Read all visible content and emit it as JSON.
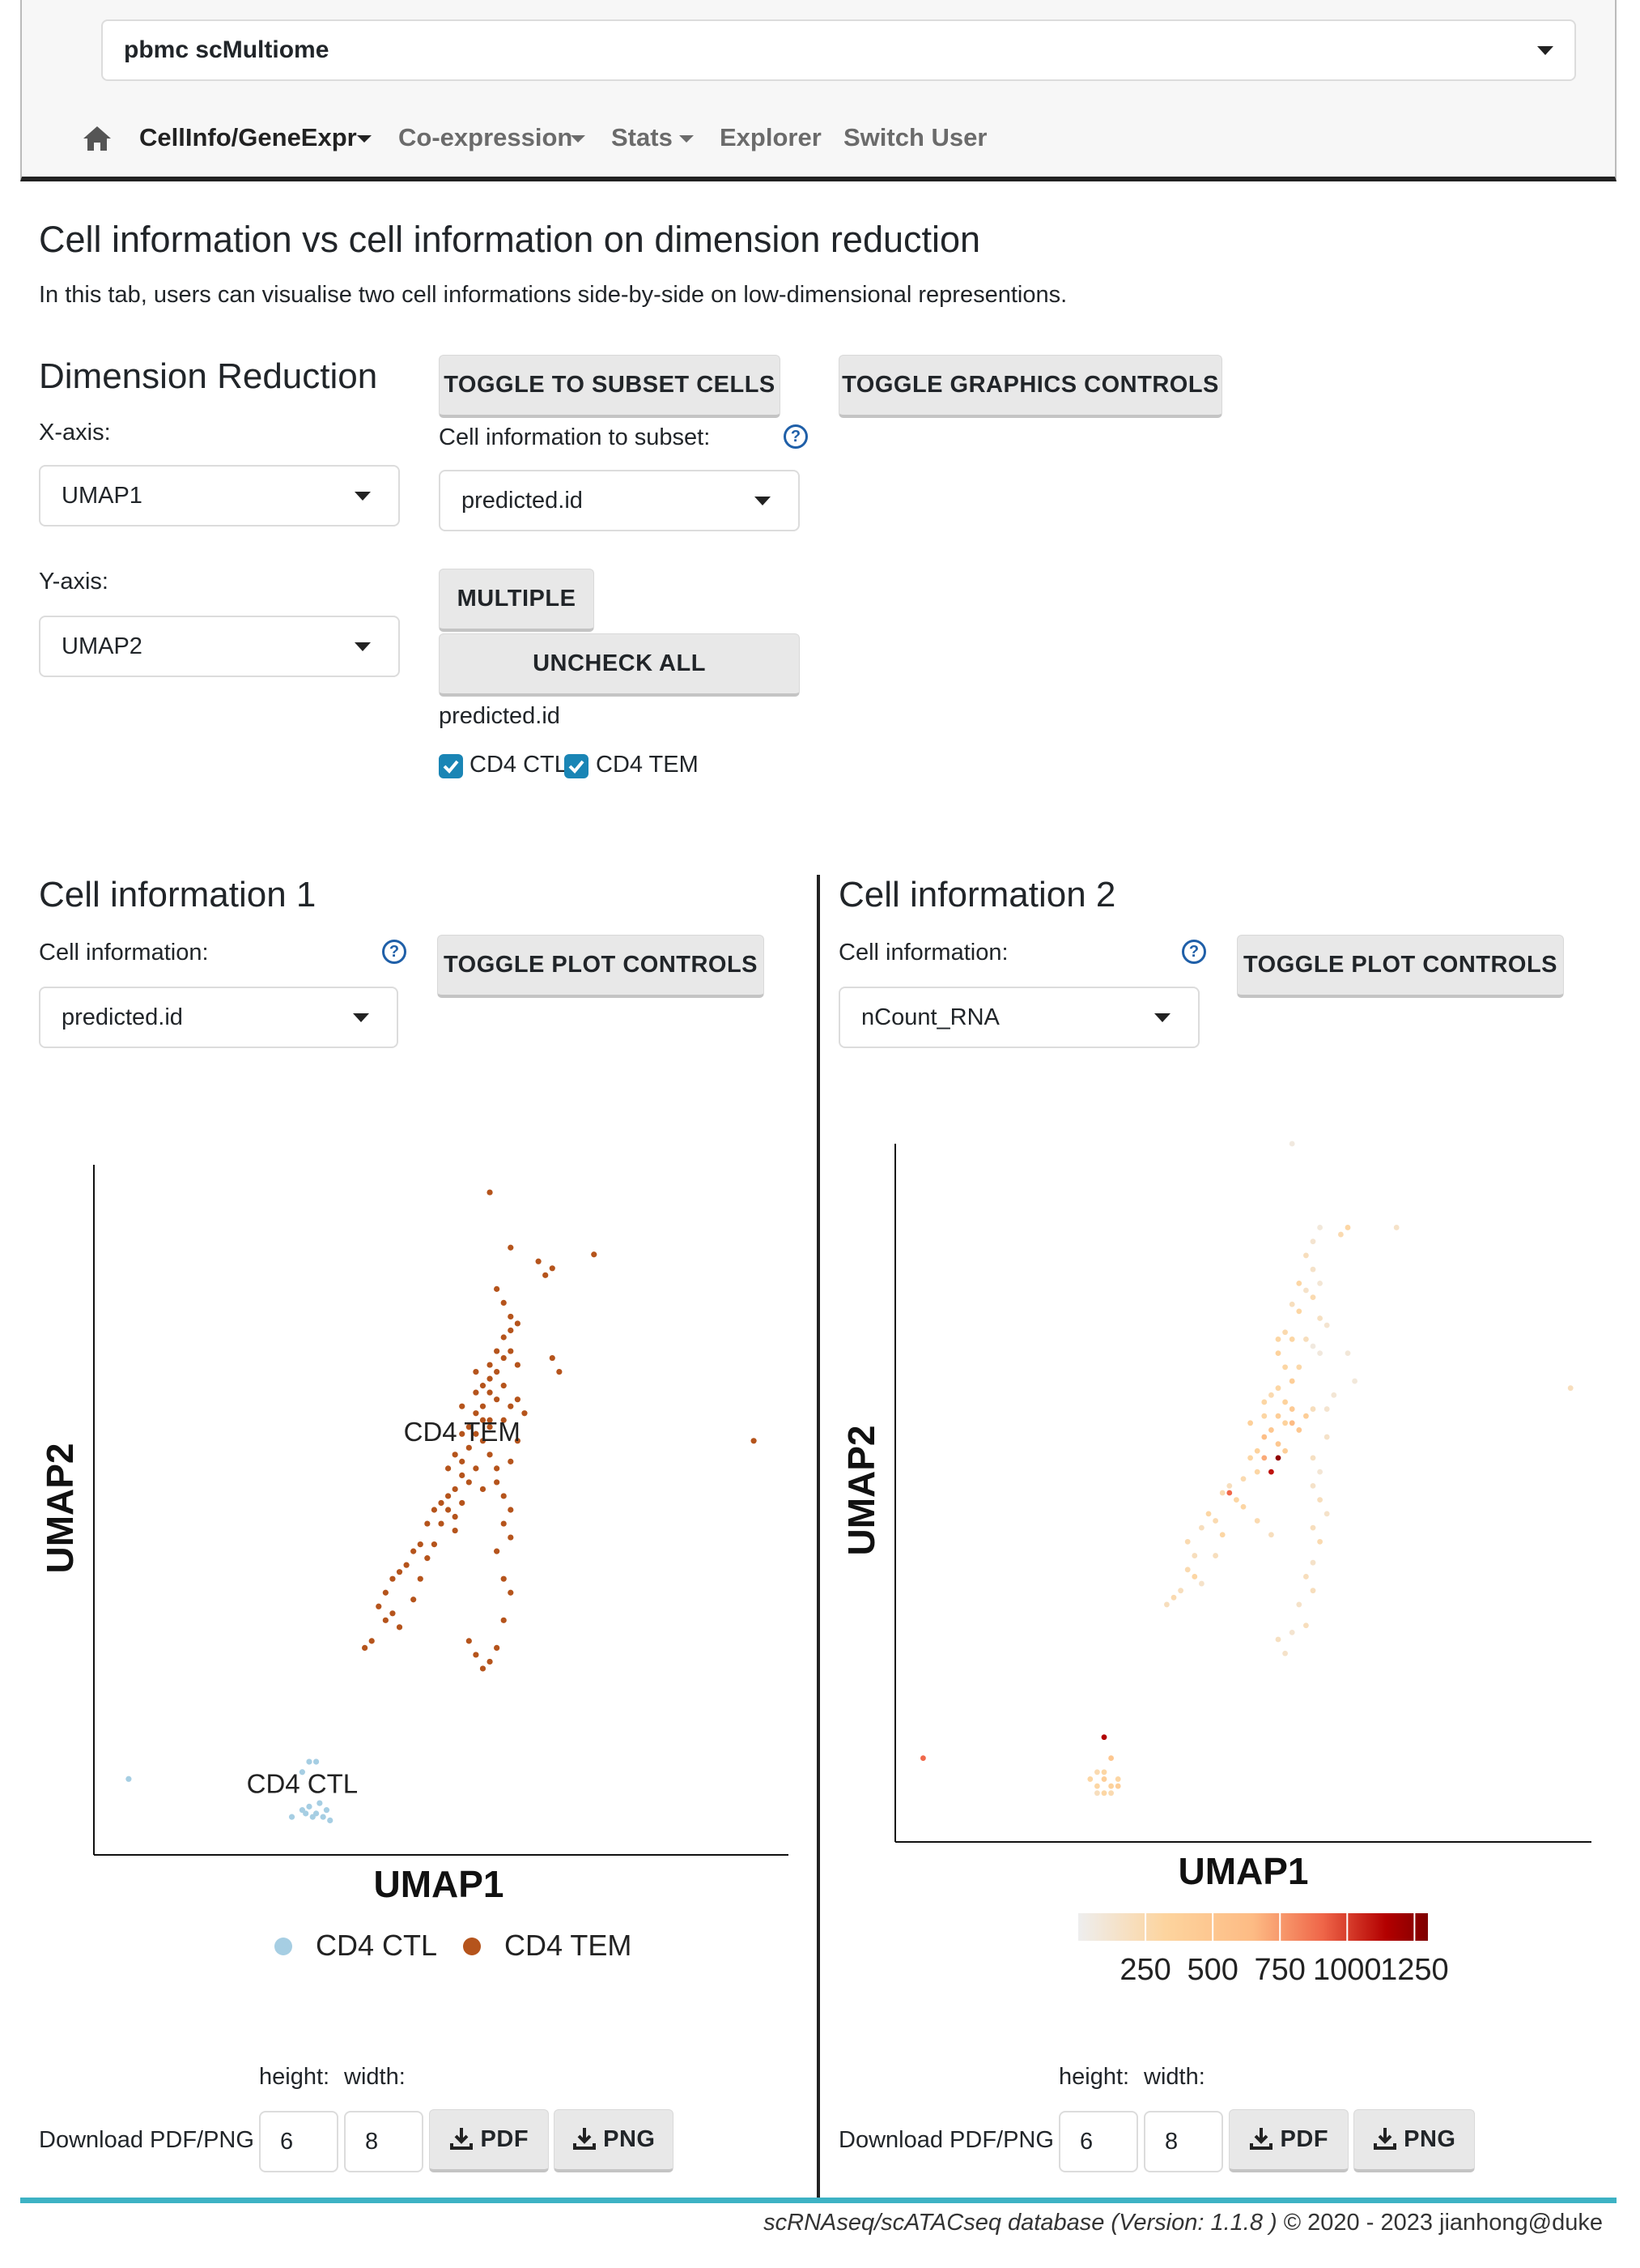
{
  "dataset": {
    "selected": "pbmc scMultiome"
  },
  "nav": {
    "home_icon": "home-icon",
    "items": [
      {
        "label": "CellInfo/GeneExpr"
      },
      {
        "label": "Co-expression"
      },
      {
        "label": "Stats"
      },
      {
        "label": "Explorer"
      },
      {
        "label": "Switch User"
      }
    ]
  },
  "page": {
    "title": "Cell information vs cell information on dimension reduction",
    "description": "In this tab, users can visualise two cell informations side-by-side on low-dimensional represention s.",
    "description_exact": "In this tab, users can visualise two cell informations side-by-side on low-dimensional representions."
  },
  "dimred": {
    "heading": "Dimension Reduction",
    "x_label": "X-axis:",
    "x_value": "UMAP1",
    "y_label": "Y-axis:",
    "y_value": "UMAP2"
  },
  "subset": {
    "toggle_button": "TOGGLE TO SUBSET CELLS",
    "label": "Cell information to subset:",
    "value": "predicted.id",
    "multiple_button": "MULTIPLE",
    "uncheck_button": "UNCHECK ALL",
    "group_label": "predicted.id",
    "options": [
      {
        "label": "CD4 CTL",
        "checked": true
      },
      {
        "label": "CD4 TEM",
        "checked": true
      }
    ]
  },
  "graphics": {
    "toggle_button": "TOGGLE GRAPHICS CONTROLS"
  },
  "panel1": {
    "heading": "Cell information 1",
    "cellinfo_label": "Cell information:",
    "cellinfo_value": "predicted.id",
    "toggle_button": "TOGGLE PLOT CONTROLS",
    "dl_height_label": "height:",
    "dl_width_label": "width:",
    "dl_label": "Download PDF/PNG",
    "height_value": "6",
    "width_value": "8",
    "pdf_button": "PDF",
    "png_button": "PNG"
  },
  "panel2": {
    "heading": "Cell information 2",
    "cellinfo_label": "Cell information:",
    "cellinfo_value": "nCount_RNA",
    "toggle_button": "TOGGLE PLOT CONTROLS",
    "dl_height_label": "height:",
    "dl_width_label": "width:",
    "dl_label": "Download PDF/PNG",
    "height_value": "6",
    "width_value": "8",
    "pdf_button": "PDF",
    "png_button": "PNG"
  },
  "footer": {
    "text": "scRNAseq/scATACseq database (Version: 1.1.8 )",
    "copyright": "© 2020 - 2023 jianhong@duke"
  },
  "chart_data": [
    {
      "type": "scatter",
      "title": "",
      "xlabel": "UMAP1",
      "ylabel": "UMAP2",
      "xlim": [
        0,
        100
      ],
      "ylim": [
        0,
        100
      ],
      "colors": {
        "CD4 CTL": "#a6cee3",
        "CD4 TEM": "#b5541c"
      },
      "series": [
        {
          "name": "CD4 CTL",
          "label_x": 30,
          "label_y": 9,
          "points": [
            [
              5,
              11
            ],
            [
              30,
              12
            ],
            [
              31,
              13.5
            ],
            [
              32,
              13.5
            ],
            [
              31,
              7
            ],
            [
              32,
              6
            ],
            [
              33,
              5.5
            ],
            [
              31.5,
              5.5
            ],
            [
              30.5,
              6
            ],
            [
              34,
              5
            ],
            [
              32.5,
              7.5
            ],
            [
              33.5,
              6.5
            ],
            [
              30,
              6.5
            ],
            [
              28.5,
              5.5
            ]
          ]
        },
        {
          "name": "CD4 TEM",
          "label_x": 53,
          "label_y": 60,
          "points": [
            [
              57,
              96
            ],
            [
              60,
              88
            ],
            [
              64,
              86
            ],
            [
              65,
              84
            ],
            [
              72,
              87
            ],
            [
              66,
              85
            ],
            [
              58,
              82
            ],
            [
              59,
              80
            ],
            [
              60,
              78
            ],
            [
              61,
              77
            ],
            [
              60,
              76
            ],
            [
              59,
              75
            ],
            [
              60,
              73
            ],
            [
              58,
              73
            ],
            [
              57,
              71
            ],
            [
              59,
              72
            ],
            [
              61,
              71
            ],
            [
              58,
              70
            ],
            [
              57,
              69
            ],
            [
              56,
              68
            ],
            [
              55,
              67
            ],
            [
              57,
              67
            ],
            [
              59,
              68
            ],
            [
              58,
              66
            ],
            [
              56,
              65
            ],
            [
              55,
              64
            ],
            [
              56,
              63
            ],
            [
              57,
              63
            ],
            [
              54,
              62
            ],
            [
              53,
              61
            ],
            [
              55,
              61
            ],
            [
              57,
              62
            ],
            [
              56,
              60
            ],
            [
              54,
              59
            ],
            [
              52,
              58
            ],
            [
              53,
              57
            ],
            [
              51,
              56
            ],
            [
              53,
              55
            ],
            [
              55,
              56
            ],
            [
              54,
              54
            ],
            [
              52,
              53
            ],
            [
              51,
              52
            ],
            [
              56,
              53
            ],
            [
              50,
              51
            ],
            [
              49,
              50
            ],
            [
              51,
              50
            ],
            [
              53,
              51
            ],
            [
              48,
              48
            ],
            [
              50,
              48
            ],
            [
              52,
              49
            ],
            [
              57,
              58
            ],
            [
              58,
              56
            ],
            [
              58,
              54
            ],
            [
              59,
              52
            ],
            [
              60,
              50
            ],
            [
              59,
              48
            ],
            [
              60,
              46
            ],
            [
              58,
              44
            ],
            [
              59,
              40
            ],
            [
              60,
              38
            ],
            [
              59,
              34
            ],
            [
              58,
              30
            ],
            [
              57,
              28
            ],
            [
              56,
              27
            ],
            [
              54,
              31
            ],
            [
              55,
              29
            ],
            [
              47,
              45
            ],
            [
              46,
              44
            ],
            [
              45,
              42
            ],
            [
              44,
              41
            ],
            [
              43,
              40
            ],
            [
              48,
              43
            ],
            [
              49,
              45
            ],
            [
              47,
              40
            ],
            [
              42,
              38
            ],
            [
              41,
              36
            ],
            [
              43,
              35
            ],
            [
              42,
              34
            ],
            [
              44,
              33
            ],
            [
              40,
              31
            ],
            [
              39,
              30
            ],
            [
              67,
              70
            ],
            [
              66,
              72
            ],
            [
              61,
              66
            ],
            [
              62,
              64
            ],
            [
              60,
              65
            ],
            [
              59,
              63
            ],
            [
              55,
              70
            ],
            [
              53,
              65
            ],
            [
              95,
              60
            ],
            [
              52,
              47
            ],
            [
              46,
              37
            ],
            [
              61,
              60
            ],
            [
              60,
              57
            ]
          ]
        }
      ]
    },
    {
      "type": "scatter",
      "title": "",
      "xlabel": "UMAP1",
      "ylabel": "UMAP2",
      "xlim": [
        0,
        100
      ],
      "ylim": [
        0,
        100
      ],
      "color_scale": {
        "min": 0,
        "max": 1300,
        "colors": [
          "#eeeeee",
          "#fdd49e",
          "#fdbb84",
          "#ef6548",
          "#b30000",
          "#7f0000"
        ]
      },
      "colorbar_ticks": [
        "250",
        "500",
        "750",
        "1000",
        "1250"
      ],
      "points": [
        [
          57,
          100,
          60
        ],
        [
          61,
          88,
          80
        ],
        [
          64,
          87,
          250
        ],
        [
          65,
          88,
          300
        ],
        [
          72,
          88,
          150
        ],
        [
          60,
          86,
          120
        ],
        [
          59,
          84,
          200
        ],
        [
          60,
          82,
          150
        ],
        [
          61,
          80,
          100
        ],
        [
          58,
          80,
          300
        ],
        [
          59,
          79,
          150
        ],
        [
          60,
          78,
          250
        ],
        [
          57,
          77,
          200
        ],
        [
          58,
          76,
          300
        ],
        [
          61,
          75,
          180
        ],
        [
          62,
          74,
          120
        ],
        [
          56,
          73,
          260
        ],
        [
          57,
          72,
          300
        ],
        [
          59,
          72,
          200
        ],
        [
          60,
          71,
          60
        ],
        [
          61,
          70,
          70
        ],
        [
          55,
          70,
          350
        ],
        [
          56,
          68,
          300
        ],
        [
          58,
          68,
          280
        ],
        [
          57,
          66,
          400
        ],
        [
          55,
          65,
          300
        ],
        [
          54,
          64,
          250
        ],
        [
          56,
          63,
          350
        ],
        [
          57,
          62,
          450
        ],
        [
          55,
          61,
          400
        ],
        [
          53,
          61,
          300
        ],
        [
          56,
          60,
          350
        ],
        [
          54,
          59,
          500
        ],
        [
          53,
          58,
          600
        ],
        [
          55,
          57,
          500
        ],
        [
          52,
          56,
          350
        ],
        [
          51,
          55,
          300
        ],
        [
          56,
          56,
          400
        ],
        [
          55,
          55,
          1250
        ],
        [
          54,
          53,
          1100
        ],
        [
          53,
          55,
          700
        ],
        [
          52,
          53,
          300
        ],
        [
          50,
          52,
          250
        ],
        [
          48,
          51,
          200
        ],
        [
          47,
          50,
          250
        ],
        [
          49,
          49,
          300
        ],
        [
          60,
          55,
          180
        ],
        [
          61,
          53,
          100
        ],
        [
          60,
          51,
          150
        ],
        [
          61,
          49,
          200
        ],
        [
          62,
          47,
          150
        ],
        [
          60,
          45,
          200
        ],
        [
          61,
          43,
          250
        ],
        [
          60,
          40,
          150
        ],
        [
          59,
          38,
          200
        ],
        [
          58,
          34,
          150
        ],
        [
          57,
          30,
          120
        ],
        [
          55,
          29,
          180
        ],
        [
          56,
          27,
          150
        ],
        [
          59,
          31,
          200
        ],
        [
          60,
          36,
          200
        ],
        [
          45,
          47,
          300
        ],
        [
          46,
          46,
          250
        ],
        [
          44,
          45,
          200
        ],
        [
          47,
          44,
          300
        ],
        [
          43,
          41,
          200
        ],
        [
          42,
          39,
          250
        ],
        [
          43,
          38,
          300
        ],
        [
          41,
          36,
          200
        ],
        [
          40,
          35,
          250
        ],
        [
          39,
          34,
          200
        ],
        [
          42,
          43,
          250
        ],
        [
          48,
          50,
          900
        ],
        [
          50,
          48,
          300
        ],
        [
          52,
          46,
          250
        ],
        [
          54,
          44,
          200
        ],
        [
          44,
          37,
          150
        ],
        [
          46,
          41,
          200
        ],
        [
          97,
          65,
          200
        ],
        [
          4,
          12,
          900
        ],
        [
          30,
          15,
          1150
        ],
        [
          31,
          12,
          500
        ],
        [
          30,
          9,
          400
        ],
        [
          31,
          8,
          350
        ],
        [
          29,
          8,
          300
        ],
        [
          32,
          8,
          400
        ],
        [
          31,
          7,
          250
        ],
        [
          30,
          7,
          300
        ],
        [
          28,
          9,
          300
        ],
        [
          29,
          10,
          250
        ],
        [
          29,
          7,
          200
        ],
        [
          32,
          9,
          300
        ],
        [
          30,
          10,
          300
        ],
        [
          62,
          62,
          120
        ],
        [
          63,
          64,
          100
        ],
        [
          65,
          70,
          90
        ],
        [
          66,
          66,
          80
        ],
        [
          55,
          72,
          300
        ],
        [
          51,
          60,
          380
        ],
        [
          53,
          63,
          300
        ],
        [
          57,
          60,
          650
        ],
        [
          58,
          59,
          500
        ],
        [
          59,
          61,
          400
        ],
        [
          60,
          62,
          200
        ],
        [
          62,
          58,
          150
        ]
      ]
    }
  ]
}
